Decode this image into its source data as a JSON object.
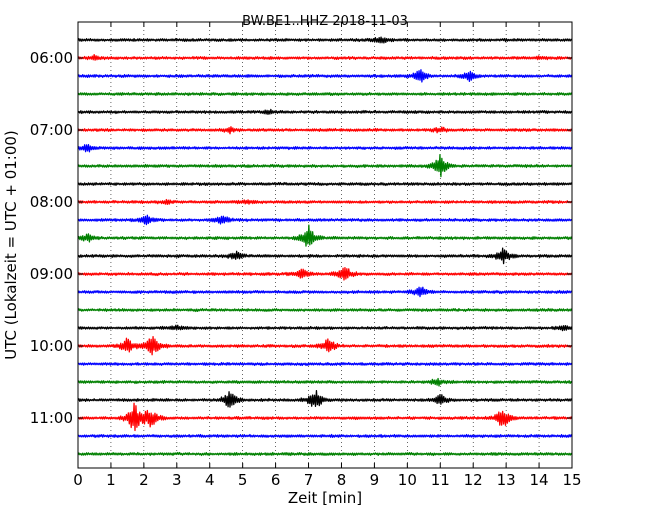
{
  "chart_data": {
    "type": "line",
    "title": "BW.BE1..HHZ 2018-11-03",
    "xlabel": "Zeit  [min]",
    "ylabel": "UTC (Lokalzeit = UTC + 01:00)",
    "xlim": [
      0,
      15
    ],
    "x_ticks": [
      "0",
      "1",
      "2",
      "3",
      "4",
      "5",
      "6",
      "7",
      "8",
      "9",
      "10",
      "11",
      "12",
      "13",
      "14",
      "15"
    ],
    "y_tick_labels": [
      "06:00",
      "07:00",
      "08:00",
      "09:00",
      "10:00",
      "11:00"
    ],
    "grid": "vertical dotted",
    "trace_colors": [
      "#000000",
      "#ff0000",
      "#0000ff",
      "#008000"
    ],
    "traces": [
      {
        "start": "05:45",
        "events": [
          {
            "t": 9.2,
            "amp": 0.25
          }
        ]
      },
      {
        "start": "06:00",
        "events": [
          {
            "t": 0.5,
            "amp": 0.15
          },
          {
            "t": 14.0,
            "amp": 0.12
          }
        ]
      },
      {
        "start": "06:15",
        "events": [
          {
            "t": 10.4,
            "amp": 0.5
          },
          {
            "t": 11.9,
            "amp": 0.35
          }
        ]
      },
      {
        "start": "06:30",
        "events": []
      },
      {
        "start": "06:45",
        "events": [
          {
            "t": 5.8,
            "amp": 0.12
          }
        ]
      },
      {
        "start": "07:00",
        "events": [
          {
            "t": 4.6,
            "amp": 0.2
          },
          {
            "t": 11.0,
            "amp": 0.2
          }
        ]
      },
      {
        "start": "07:15",
        "events": [
          {
            "t": 0.3,
            "amp": 0.35
          }
        ]
      },
      {
        "start": "07:30",
        "events": [
          {
            "t": 11.0,
            "amp": 0.8
          }
        ]
      },
      {
        "start": "07:45",
        "events": []
      },
      {
        "start": "08:00",
        "events": [
          {
            "t": 2.7,
            "amp": 0.15
          },
          {
            "t": 5.1,
            "amp": 0.15
          }
        ]
      },
      {
        "start": "08:15",
        "events": [
          {
            "t": 2.1,
            "amp": 0.35
          },
          {
            "t": 4.4,
            "amp": 0.35
          }
        ]
      },
      {
        "start": "08:30",
        "events": [
          {
            "t": 0.3,
            "amp": 0.3
          },
          {
            "t": 7.0,
            "amp": 1.0
          }
        ]
      },
      {
        "start": "08:45",
        "events": [
          {
            "t": 4.8,
            "amp": 0.35
          },
          {
            "t": 12.9,
            "amp": 0.6
          }
        ]
      },
      {
        "start": "09:00",
        "events": [
          {
            "t": 6.8,
            "amp": 0.35
          },
          {
            "t": 8.1,
            "amp": 0.7
          }
        ]
      },
      {
        "start": "09:15",
        "events": [
          {
            "t": 10.4,
            "amp": 0.4
          }
        ]
      },
      {
        "start": "09:30",
        "events": []
      },
      {
        "start": "09:45",
        "events": [
          {
            "t": 3.0,
            "amp": 0.15
          },
          {
            "t": 14.8,
            "amp": 0.2
          }
        ]
      },
      {
        "start": "10:00",
        "events": [
          {
            "t": 1.5,
            "amp": 0.6
          },
          {
            "t": 2.25,
            "amp": 0.9
          },
          {
            "t": 7.6,
            "amp": 0.6
          }
        ]
      },
      {
        "start": "10:15",
        "events": []
      },
      {
        "start": "10:30",
        "events": [
          {
            "t": 10.9,
            "amp": 0.3
          }
        ]
      },
      {
        "start": "10:45",
        "events": [
          {
            "t": 4.6,
            "amp": 0.7
          },
          {
            "t": 7.2,
            "amp": 0.8
          },
          {
            "t": 11.0,
            "amp": 0.4
          }
        ]
      },
      {
        "start": "11:00",
        "events": [
          {
            "t": 1.7,
            "amp": 1.2
          },
          {
            "t": 2.2,
            "amp": 0.8
          },
          {
            "t": 12.9,
            "amp": 0.8
          }
        ]
      },
      {
        "start": "11:15",
        "events": []
      },
      {
        "start": "11:30",
        "events": []
      }
    ]
  }
}
